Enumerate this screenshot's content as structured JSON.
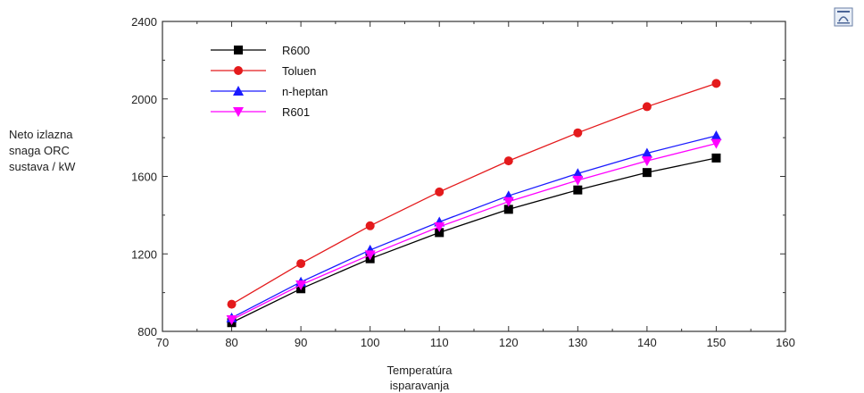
{
  "chart_data": {
    "type": "line",
    "x": [
      80,
      90,
      100,
      110,
      120,
      130,
      140,
      150
    ],
    "xlim": [
      70,
      160
    ],
    "xticks": [
      70,
      80,
      90,
      100,
      110,
      120,
      130,
      140,
      150,
      160
    ],
    "ylim": [
      800,
      2400
    ],
    "yticks": [
      800,
      1200,
      1600,
      2000,
      2400
    ],
    "xlabel_lines": [
      "Temperatúra",
      "isparavanja"
    ],
    "ylabel_lines": [
      "Neto izlazna",
      "snaga ORC",
      "sustava / kW"
    ],
    "grid": false,
    "legend_position": "top-left",
    "series": [
      {
        "name": "R600",
        "color": "#000000",
        "marker": "square",
        "values": [
          845,
          1020,
          1175,
          1310,
          1430,
          1530,
          1620,
          1695
        ]
      },
      {
        "name": "Toluen",
        "color": "#e41a1c",
        "marker": "circle",
        "values": [
          940,
          1150,
          1345,
          1520,
          1680,
          1825,
          1960,
          2080
        ]
      },
      {
        "name": "n-heptan",
        "color": "#1a1aff",
        "marker": "triangle-up",
        "values": [
          870,
          1055,
          1220,
          1365,
          1500,
          1615,
          1720,
          1810
        ]
      },
      {
        "name": "R601",
        "color": "#ff00ff",
        "marker": "triangle-down",
        "values": [
          860,
          1040,
          1195,
          1340,
          1470,
          1580,
          1680,
          1770
        ]
      }
    ]
  },
  "icons": {
    "corner": "window-restore-icon"
  }
}
